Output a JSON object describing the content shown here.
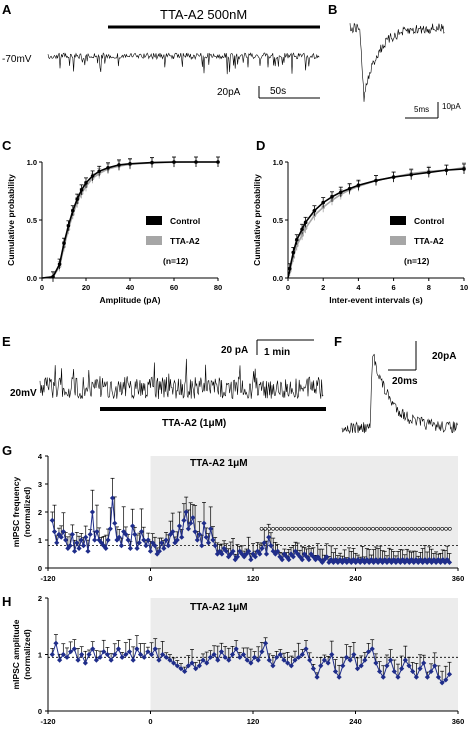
{
  "panels": {
    "A": {
      "label": "A",
      "drug_label": "TTA-A2 500nM",
      "holding": "-70mV",
      "scale_current": "20pA",
      "scale_time": "50s"
    },
    "B": {
      "label": "B",
      "scale_time": "5ms",
      "scale_current": "10pA"
    },
    "C": {
      "label": "C",
      "legend": {
        "control": "Control",
        "drug": "TTA-A2",
        "n": "(n=12)"
      },
      "colors": {
        "control": "#000000",
        "drug": "#a6a6a6"
      }
    },
    "D": {
      "label": "D",
      "legend": {
        "control": "Control",
        "drug": "TTA-A2",
        "n": "(n=12)"
      }
    },
    "E": {
      "label": "E",
      "scale_current": "20 pA",
      "scale_time": "1 min",
      "holding": "20mV",
      "drug_label": "TTA-A2 (1μM)"
    },
    "F": {
      "label": "F",
      "scale_current": "20pA",
      "scale_time": "20ms"
    },
    "G": {
      "label": "G",
      "shade_label": "TTA-A2 1μM"
    },
    "H": {
      "label": "H",
      "shade_label": "TTA-A2 1μM"
    }
  },
  "chart_data": [
    {
      "id": "C",
      "type": "line",
      "xlabel": "Amplitude (pA)",
      "ylabel": "Cumulative probability",
      "xlim": [
        0,
        80
      ],
      "ylim": [
        0,
        1.0
      ],
      "xticks": [
        0,
        20,
        40,
        60,
        80
      ],
      "yticks": [
        0.0,
        0.5,
        1.0
      ],
      "x": [
        0,
        5,
        8,
        10,
        12,
        14,
        16,
        18,
        20,
        23,
        26,
        30,
        35,
        40,
        50,
        60,
        70,
        80
      ],
      "series": [
        {
          "name": "Control",
          "values": [
            0,
            0.01,
            0.12,
            0.3,
            0.45,
            0.58,
            0.68,
            0.76,
            0.82,
            0.88,
            0.92,
            0.95,
            0.975,
            0.985,
            0.995,
            1.0,
            1.0,
            1.0
          ]
        },
        {
          "name": "TTA-A2",
          "values": [
            0,
            0.01,
            0.1,
            0.27,
            0.42,
            0.55,
            0.65,
            0.73,
            0.79,
            0.86,
            0.9,
            0.94,
            0.965,
            0.98,
            0.993,
            0.998,
            1.0,
            1.0
          ]
        }
      ]
    },
    {
      "id": "D",
      "type": "line",
      "xlabel": "Inter-event intervals (s)",
      "ylabel": "Cumulative probability",
      "xlim": [
        0,
        10
      ],
      "ylim": [
        0,
        1.0
      ],
      "xticks": [
        0,
        2,
        4,
        6,
        8,
        10
      ],
      "yticks": [
        0.0,
        0.5,
        1.0
      ],
      "x": [
        0,
        0.1,
        0.3,
        0.5,
        0.8,
        1.0,
        1.5,
        2,
        2.5,
        3,
        3.5,
        4,
        5,
        6,
        7,
        8,
        9,
        10
      ],
      "series": [
        {
          "name": "Control",
          "values": [
            0,
            0.08,
            0.22,
            0.33,
            0.42,
            0.48,
            0.58,
            0.65,
            0.7,
            0.74,
            0.77,
            0.8,
            0.84,
            0.87,
            0.89,
            0.91,
            0.93,
            0.94
          ]
        },
        {
          "name": "TTA-A2",
          "values": [
            0,
            0.06,
            0.18,
            0.28,
            0.37,
            0.43,
            0.54,
            0.61,
            0.67,
            0.72,
            0.76,
            0.79,
            0.84,
            0.87,
            0.9,
            0.92,
            0.93,
            0.95
          ]
        }
      ]
    },
    {
      "id": "G",
      "type": "line",
      "xlabel": "",
      "ylabel": "mIPSC frequency (normalized)",
      "xlim": [
        -120,
        360
      ],
      "ylim": [
        0,
        4
      ],
      "xticks": [
        -120,
        0,
        120,
        240,
        360
      ],
      "yticks": [
        0,
        1,
        2,
        3,
        4
      ],
      "shade_from": 0,
      "dashed_line": 0.8,
      "marker_y": 1.4,
      "markers_from": 130,
      "values": [
        1.7,
        1.3,
        0.9,
        1.2,
        1.1,
        1.3,
        1.0,
        0.7,
        0.8,
        1.2,
        0.6,
        0.9,
        0.7,
        1.0,
        0.8,
        1.1,
        0.6,
        1.2,
        2.0,
        1.0,
        1.3,
        1.0,
        0.9,
        0.8,
        0.7,
        1.0,
        1.4,
        2.5,
        1.6,
        1.0,
        1.1,
        0.8,
        1.3,
        1.2,
        1.0,
        0.7,
        1.5,
        1.2,
        0.7,
        0.9,
        1.3,
        1.0,
        0.8,
        1.0,
        0.6,
        0.9,
        0.8,
        0.5,
        0.6,
        0.9,
        0.7,
        1.0,
        0.8,
        1.2,
        1.3,
        0.9,
        1.0,
        1.5,
        1.1,
        1.7,
        2.0,
        1.4,
        1.6,
        1.8,
        1.3,
        1.0,
        1.2,
        0.8,
        1.6,
        1.1,
        0.9,
        1.4,
        1.0,
        0.8,
        0.5,
        0.6,
        0.5,
        0.7,
        0.6,
        0.4,
        0.5,
        0.6,
        0.3,
        0.4,
        0.6,
        0.5,
        0.4,
        0.5,
        0.6,
        0.3,
        0.5,
        0.4,
        0.6,
        0.5,
        0.7,
        0.9,
        0.5,
        1.1,
        0.8,
        0.6,
        0.5,
        0.6,
        0.4,
        0.3,
        0.5,
        0.4,
        0.3,
        0.5,
        0.4,
        0.6,
        0.5,
        0.4,
        0.3,
        0.5,
        0.4,
        0.3,
        0.5,
        0.4,
        0.3,
        0.4,
        0.3,
        0.2,
        0.3,
        0.4,
        0.2,
        0.3,
        0.2,
        0.3,
        0.2,
        0.3,
        0.2,
        0.3,
        0.2,
        0.3,
        0.2,
        0.3,
        0.2,
        0.3,
        0.2,
        0.3,
        0.2,
        0.3,
        0.2,
        0.3,
        0.2,
        0.3,
        0.2,
        0.3,
        0.2,
        0.3,
        0.2,
        0.3,
        0.2,
        0.3,
        0.2,
        0.3,
        0.2,
        0.3,
        0.2,
        0.3,
        0.2,
        0.3,
        0.2,
        0.3,
        0.2,
        0.3,
        0.2,
        0.3,
        0.2,
        0.3,
        0.2,
        0.3,
        0.2,
        0.3,
        0.2,
        0.3,
        0.2,
        0.3,
        0.2
      ]
    },
    {
      "id": "H",
      "type": "line",
      "xlabel": "",
      "ylabel": "mIPSC amplitude (normalized)",
      "xlim": [
        -120,
        360
      ],
      "ylim": [
        0,
        2
      ],
      "xticks": [
        -120,
        0,
        120,
        240,
        360
      ],
      "yticks": [
        0,
        1,
        2
      ],
      "shade_from": 0,
      "dashed_line": 0.95,
      "values": [
        1.0,
        1.2,
        0.9,
        1.0,
        0.95,
        1.05,
        1.1,
        0.9,
        1.0,
        0.85,
        1.0,
        1.1,
        0.9,
        0.95,
        1.05,
        1.0,
        0.9,
        1.0,
        1.1,
        0.95,
        1.0,
        1.05,
        0.9,
        1.1,
        1.0,
        0.95,
        1.05,
        1.0,
        1.1,
        0.9,
        1.0,
        0.95,
        0.9,
        0.85,
        0.8,
        0.75,
        0.7,
        0.8,
        0.85,
        0.75,
        0.8,
        0.9,
        0.85,
        0.95,
        1.0,
        0.9,
        1.05,
        0.95,
        0.9,
        1.0,
        1.1,
        0.95,
        1.0,
        0.9,
        0.85,
        0.95,
        0.9,
        1.05,
        1.2,
        0.9,
        0.8,
        0.95,
        1.0,
        0.9,
        0.85,
        0.8,
        0.9,
        0.95,
        1.0,
        1.1,
        0.9,
        0.75,
        0.6,
        0.8,
        0.9,
        0.85,
        1.0,
        0.7,
        0.6,
        0.8,
        0.95,
        0.9,
        1.0,
        0.75,
        0.8,
        0.9,
        1.05,
        1.1,
        0.85,
        0.7,
        0.6,
        0.8,
        0.9,
        0.7,
        0.6,
        0.75,
        0.9,
        0.8,
        0.7,
        0.6,
        0.75,
        0.85,
        0.6,
        0.7,
        0.8,
        0.6,
        0.5,
        0.55,
        0.65
      ]
    }
  ]
}
